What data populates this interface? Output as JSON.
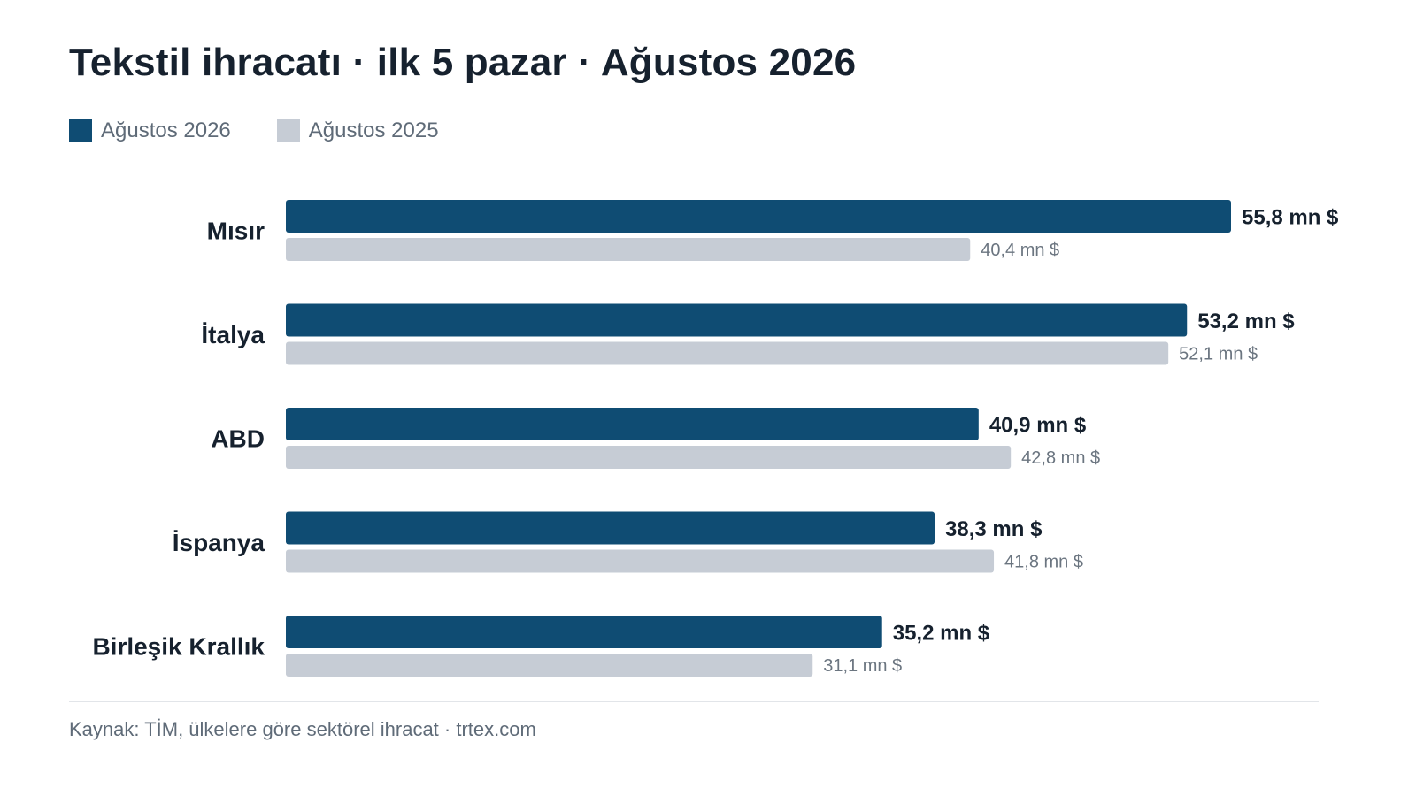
{
  "title": "Tekstil ihracatı · ilk 5 pazar · Ağustos 2026",
  "source": "Kaynak: TİM, ülkelere göre sektörel ihracat · trtex.com",
  "colors": {
    "current": "#0f4c73",
    "previous": "#c6ccd5"
  },
  "chart_data": {
    "type": "bar",
    "orientation": "horizontal",
    "categories": [
      "Mısır",
      "İtalya",
      "ABD",
      "İspanya",
      "Birleşik Krallık"
    ],
    "series": [
      {
        "name": "Ağustos 2026",
        "values": [
          55.8,
          53.2,
          40.9,
          38.3,
          35.2
        ],
        "labels": [
          "55,8 mn $",
          "53,2 mn $",
          "40,9 mn $",
          "38,3 mn $",
          "35,2 mn $"
        ]
      },
      {
        "name": "Ağustos 2025",
        "values": [
          40.4,
          52.1,
          42.8,
          41.8,
          31.1
        ],
        "labels": [
          "40,4 mn $",
          "52,1 mn $",
          "42,8 mn $",
          "41,8 mn $",
          "31,1 mn $"
        ]
      }
    ],
    "xlim": [
      0,
      55.8
    ],
    "grid": false,
    "legend": "top-left"
  }
}
